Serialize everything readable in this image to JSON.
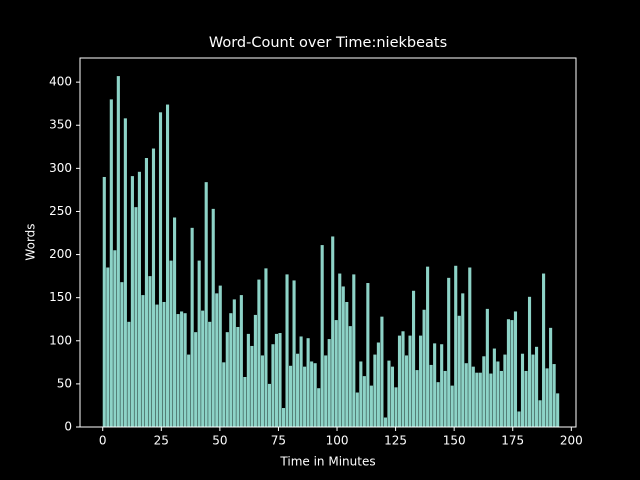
{
  "chart_data": {
    "type": "bar",
    "title": "Word-Count over Time:niekbeats",
    "x_label": "Time in Minutes",
    "y_label": "Words",
    "color": "#8dd3c7",
    "x": [
      0,
      1.5,
      3,
      4.5,
      6,
      7.5,
      9,
      10.5,
      12,
      13.5,
      15,
      16.5,
      18,
      19.5,
      21,
      22.5,
      24,
      25.5,
      27,
      28.5,
      30,
      31.5,
      33,
      34.5,
      36,
      37.5,
      39,
      40.5,
      42,
      43.5,
      45,
      46.5,
      48,
      49.5,
      51,
      52.5,
      54,
      55.5,
      57,
      58.5,
      60,
      61.5,
      63,
      64.5,
      66,
      67.5,
      69,
      70.5,
      72,
      73.5,
      75,
      76.5,
      78,
      79.5,
      81,
      82.5,
      84,
      85.5,
      87,
      88.5,
      90,
      91.5,
      93,
      94.5,
      96,
      97.5,
      99,
      100.5,
      102,
      103.5,
      105,
      106.5,
      108,
      109.5,
      111,
      112.5,
      114,
      115.5,
      117,
      118.5,
      120,
      121.5,
      123,
      124.5,
      126,
      127.5,
      129,
      130.5,
      132,
      133.5,
      135,
      136.5,
      138,
      139.5,
      141,
      142.5,
      144,
      145.5,
      147,
      148.5,
      150,
      151.5,
      153,
      154.5,
      156,
      157.5,
      159,
      160.5,
      162,
      163.5,
      165,
      166.5,
      168,
      169.5,
      171,
      172.5,
      174,
      175.5,
      177,
      178.5,
      180,
      181.5,
      183,
      184.5,
      186,
      187.5,
      189,
      190.5,
      192,
      193.5
    ],
    "values": [
      290,
      185,
      380,
      205,
      407,
      168,
      358,
      122,
      291,
      255,
      296,
      153,
      312,
      175,
      323,
      142,
      365,
      145,
      374,
      193,
      243,
      131,
      134,
      132,
      84,
      231,
      110,
      193,
      135,
      284,
      122,
      253,
      155,
      164,
      75,
      110,
      132,
      148,
      116,
      153,
      58,
      108,
      94,
      130,
      171,
      83,
      184,
      50,
      96,
      108,
      109,
      22,
      177,
      71,
      170,
      85,
      105,
      70,
      103,
      76,
      74,
      45,
      211,
      83,
      102,
      221,
      124,
      178,
      163,
      145,
      117,
      177,
      40,
      76,
      59,
      167,
      48,
      84,
      98,
      128,
      11,
      77,
      70,
      46,
      106,
      111,
      83,
      106,
      158,
      66,
      106,
      136,
      186,
      72,
      97,
      52,
      96,
      65,
      173,
      48,
      187,
      129,
      155,
      74,
      185,
      70,
      63,
      63,
      82,
      137,
      62,
      91,
      76,
      65,
      84,
      125,
      124,
      134,
      18,
      85,
      65,
      151,
      84,
      93,
      31,
      178,
      68,
      115,
      73,
      39
    ],
    "xlim": [
      -9.7,
      202
    ],
    "ylim": [
      0,
      428
    ],
    "xticks": [
      0,
      25,
      50,
      75,
      100,
      125,
      150,
      175,
      200
    ],
    "yticks": [
      0,
      50,
      100,
      150,
      200,
      250,
      300,
      350,
      400
    ]
  }
}
